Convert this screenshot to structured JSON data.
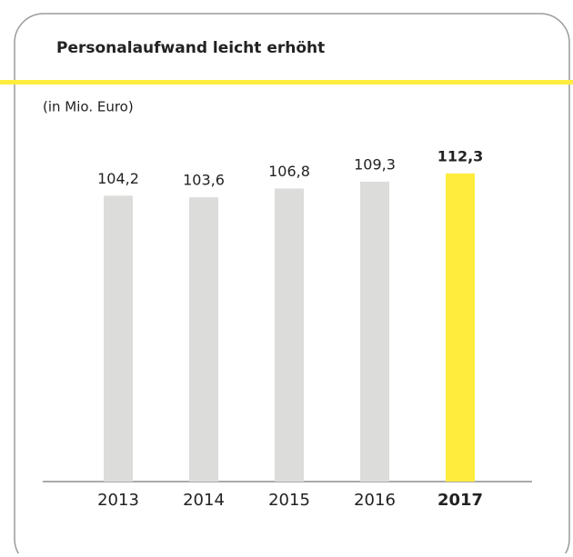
{
  "chart_data": {
    "type": "bar",
    "title": "Personalaufwand leicht erhöht",
    "subtitle": "(in Mio. Euro)",
    "categories": [
      "2013",
      "2014",
      "2015",
      "2016",
      "2017"
    ],
    "values": [
      104.2,
      103.6,
      106.8,
      109.3,
      112.3
    ],
    "value_labels": [
      "104,2",
      "103,6",
      "106,8",
      "109,3",
      "112,3"
    ],
    "colors": [
      "#dcdcdb",
      "#dcdcdb",
      "#dcdcdb",
      "#dcdcdb",
      "#ffec3d"
    ]
  }
}
